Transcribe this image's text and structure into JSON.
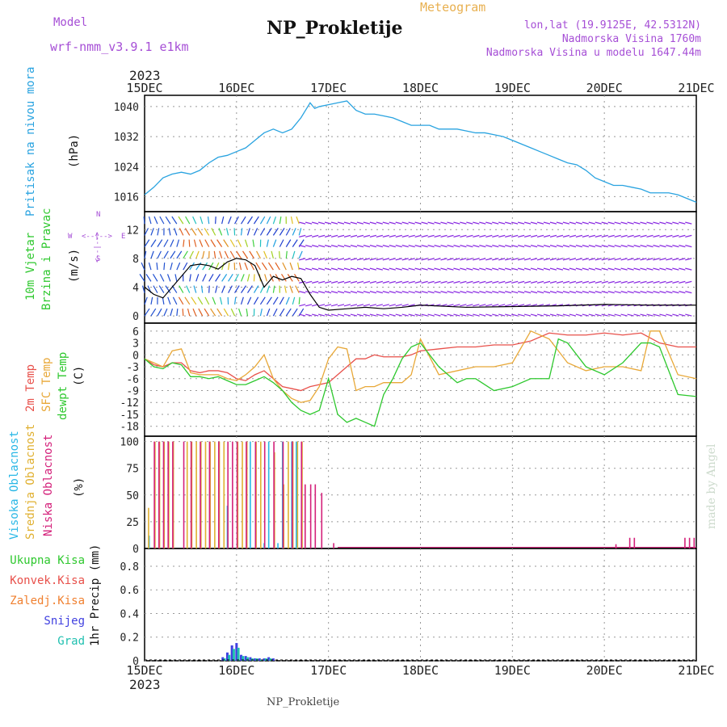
{
  "header": {
    "model_label": "Model",
    "model_name": "wrf-nmm_v3.9.1 e1km",
    "title": "NP_Prokletije",
    "meteogram_label": "Meteogram",
    "lonlat": "lon,lat (19.9125E, 42.5312N)",
    "altitude": "Nadmorska Visina 1760m",
    "model_altitude": "Nadmorska Visina u modelu 1647.44m"
  },
  "footer": {
    "station": "NP_Prokletije",
    "watermark": "made by Angel"
  },
  "time_axis": {
    "year": "2023",
    "labels": [
      "15DEC",
      "16DEC",
      "17DEC",
      "18DEC",
      "19DEC",
      "20DEC",
      "21DEC"
    ]
  },
  "panel_labels": {
    "pressure": {
      "name": "Pritisak na nivou mora",
      "unit": "(hPa)"
    },
    "wind": {
      "line1": "10m Vjetar",
      "line2": "Brzina i Pravac",
      "unit": "(m/s)",
      "compass_n": "N",
      "compass_s": "S",
      "compass_e": "E",
      "compass_w": "W",
      "compass_arrow_ns": "<--|-->",
      "compass_arrow_ew": "<--|-->"
    },
    "temp": {
      "t2m": "2m Temp",
      "sfc": "SFC Temp",
      "dew": "dewpt Temp",
      "unit": "(C)"
    },
    "cloud": {
      "high": "Visoka Oblacnost",
      "mid": "Srednja Oblacnost",
      "low": "Niska Oblacnost",
      "unit": "(%)"
    },
    "precip": {
      "total": "Ukupna Kisa",
      "conv": "Konvek.Kisa",
      "frz": "Zaledj.Kisa",
      "snow": "Snijeg",
      "grad": "Grad",
      "unit": "1hr Precip (mm)"
    }
  },
  "colors": {
    "pressure": "#29a3e0",
    "t2m": "#e8504a",
    "sfc": "#e8a838",
    "dew": "#2ec82e",
    "high_cloud": "#29b7e6",
    "mid_cloud": "#e0b030",
    "low_cloud": "#d4207a",
    "total_precip": "#2ec82e",
    "conv_precip": "#e8504a",
    "frz_precip": "#f08030",
    "snow": "#4040e0",
    "grad": "#20c0b0",
    "purple": "#a64fd6"
  },
  "chart_data": [
    {
      "type": "line",
      "panel": "pressure",
      "ylim": [
        1012,
        1043
      ],
      "yticks": [
        "1016",
        "1024",
        "1032",
        "1040"
      ],
      "xlim": [
        0,
        6
      ],
      "series": [
        {
          "x": [
            0,
            0.1,
            0.2,
            0.3,
            0.4,
            0.5,
            0.6,
            0.7,
            0.8,
            0.9,
            1.0,
            1.1,
            1.2,
            1.3,
            1.4,
            1.5,
            1.6,
            1.7,
            1.75,
            1.8,
            1.85,
            1.9,
            2.0,
            2.1,
            2.2,
            2.3,
            2.4,
            2.5,
            2.6,
            2.7,
            2.8,
            2.9,
            3.0,
            3.1,
            3.2,
            3.3,
            3.4,
            3.5,
            3.6,
            3.7,
            3.8,
            3.9,
            4.0,
            4.1,
            4.2,
            4.3,
            4.4,
            4.5,
            4.6,
            4.7,
            4.8,
            4.9,
            5.0,
            5.1,
            5.2,
            5.3,
            5.4,
            5.5,
            5.6,
            5.7,
            5.8,
            5.9,
            6.0
          ],
          "values": [
            1016.5,
            1018.5,
            1021,
            1022,
            1022.5,
            1022,
            1023,
            1025,
            1026.5,
            1027,
            1028,
            1029,
            1031,
            1033,
            1034,
            1033,
            1034,
            1037,
            1039,
            1041,
            1039.5,
            1040,
            1040.5,
            1041,
            1041.5,
            1039,
            1038,
            1038,
            1037.5,
            1037,
            1036,
            1035,
            1035,
            1035,
            1034,
            1034,
            1034,
            1033.5,
            1033,
            1033,
            1032.5,
            1032,
            1031,
            1030,
            1029,
            1028,
            1027,
            1026,
            1025,
            1024.5,
            1023,
            1021,
            1020,
            1019,
            1019,
            1018.5,
            1018,
            1017,
            1017,
            1017,
            1016.5,
            1015.5,
            1014.5
          ]
        }
      ]
    },
    {
      "type": "line",
      "panel": "wind",
      "ylim": [
        -1,
        14.5
      ],
      "yticks": [
        "0",
        "4",
        "8",
        "12"
      ],
      "xlim": [
        0,
        6
      ],
      "series": [
        {
          "name": "wind_speed",
          "x": [
            0,
            0.1,
            0.2,
            0.3,
            0.4,
            0.5,
            0.6,
            0.7,
            0.8,
            0.9,
            1.0,
            1.1,
            1.2,
            1.3,
            1.4,
            1.5,
            1.6,
            1.7,
            1.8,
            1.9,
            2.0,
            2.2,
            2.4,
            2.6,
            2.8,
            3.0,
            3.5,
            4.0,
            4.5,
            5.0,
            5.5,
            6.0
          ],
          "values": [
            4,
            3,
            2.5,
            4,
            5.5,
            7,
            7.2,
            7,
            6.5,
            7.5,
            8,
            7.8,
            7,
            4,
            5.5,
            5,
            5.5,
            5.2,
            3,
            1.2,
            0.8,
            1,
            1.2,
            1,
            1.2,
            1.5,
            1.2,
            1.3,
            1.4,
            1.6,
            1.5,
            1.5
          ]
        }
      ]
    },
    {
      "type": "line",
      "panel": "temp",
      "ylim": [
        -20.5,
        8
      ],
      "yticks": [
        "6",
        "3",
        "0",
        "-3",
        "-6",
        "-9",
        "-12",
        "-15",
        "-18"
      ],
      "xlim": [
        0,
        6
      ],
      "series": [
        {
          "name": "2m Temp",
          "x": [
            0,
            0.1,
            0.2,
            0.3,
            0.4,
            0.5,
            0.6,
            0.7,
            0.8,
            0.9,
            1.0,
            1.1,
            1.2,
            1.3,
            1.4,
            1.5,
            1.6,
            1.7,
            1.8,
            1.9,
            2.0,
            2.1,
            2.2,
            2.3,
            2.4,
            2.5,
            2.6,
            2.7,
            2.8,
            2.9,
            3.0,
            3.2,
            3.4,
            3.6,
            3.8,
            4.0,
            4.2,
            4.4,
            4.6,
            4.8,
            5.0,
            5.2,
            5.4,
            5.6,
            5.8,
            6.0
          ],
          "values": [
            -1,
            -2.5,
            -3,
            -2,
            -2,
            -4,
            -4.5,
            -4,
            -4,
            -4.5,
            -6,
            -6.5,
            -5,
            -4,
            -6,
            -8,
            -8.5,
            -9,
            -8,
            -7.5,
            -7,
            -5,
            -3,
            -1,
            -1,
            0,
            -0.5,
            -0.5,
            -0.5,
            0,
            1,
            1.5,
            2,
            2,
            2.5,
            2.5,
            3.5,
            5.5,
            5,
            5,
            5.5,
            5,
            5.5,
            3,
            2,
            2
          ]
        },
        {
          "name": "SFC Temp",
          "x": [
            0,
            0.1,
            0.2,
            0.3,
            0.4,
            0.5,
            0.6,
            0.7,
            0.8,
            0.9,
            1.0,
            1.1,
            1.2,
            1.3,
            1.4,
            1.5,
            1.6,
            1.7,
            1.8,
            1.9,
            2.0,
            2.1,
            2.2,
            2.3,
            2.4,
            2.5,
            2.6,
            2.7,
            2.8,
            2.9,
            3.0,
            3.2,
            3.4,
            3.6,
            3.8,
            4.0,
            4.2,
            4.4,
            4.6,
            4.8,
            5.0,
            5.2,
            5.4,
            5.5,
            5.6,
            5.8,
            6.0
          ],
          "values": [
            -1,
            -2,
            -3,
            1,
            1.5,
            -4.5,
            -5,
            -5,
            -5,
            -6,
            -6.5,
            -5,
            -3,
            0,
            -6,
            -9,
            -11,
            -12,
            -11.5,
            -8,
            -1,
            2,
            1.5,
            -9,
            -8,
            -8,
            -7,
            -7,
            -7,
            -5,
            4,
            -5,
            -4,
            -3,
            -3,
            -2,
            6,
            4,
            -2,
            -4,
            -3,
            -3,
            -4,
            6,
            6,
            -5,
            -6
          ]
        },
        {
          "name": "dewpt Temp",
          "x": [
            0,
            0.1,
            0.2,
            0.3,
            0.4,
            0.5,
            0.6,
            0.7,
            0.8,
            0.9,
            1.0,
            1.1,
            1.2,
            1.3,
            1.4,
            1.5,
            1.6,
            1.7,
            1.8,
            1.9,
            2.0,
            2.1,
            2.2,
            2.3,
            2.4,
            2.5,
            2.6,
            2.7,
            2.8,
            2.9,
            3.0,
            3.2,
            3.4,
            3.5,
            3.6,
            3.8,
            4.0,
            4.2,
            4.4,
            4.5,
            4.6,
            4.8,
            5.0,
            5.2,
            5.4,
            5.5,
            5.6,
            5.8,
            6.0
          ],
          "values": [
            -1,
            -3,
            -3.5,
            -2,
            -2.5,
            -5.5,
            -5.5,
            -6,
            -5.5,
            -6.5,
            -7.5,
            -7.5,
            -6.5,
            -5.5,
            -7,
            -9,
            -12,
            -14,
            -15,
            -14,
            -6,
            -15,
            -17,
            -16,
            -17,
            -18,
            -10,
            -6,
            -1,
            2,
            3,
            -3,
            -7,
            -6,
            -6,
            -9,
            -8,
            -6,
            -6,
            4,
            3,
            -3,
            -5,
            -2,
            3,
            3,
            2,
            -10,
            -10.5
          ]
        }
      ]
    },
    {
      "type": "bar",
      "panel": "cloud",
      "ylim": [
        0,
        105
      ],
      "yticks": [
        "0",
        "25",
        "50",
        "75",
        "100"
      ],
      "xlim": [
        0,
        6
      ],
      "series": [
        {
          "name": "Visoka Oblacnost",
          "x": [
            0.05,
            0.9,
            1.15,
            1.3,
            1.35,
            1.45,
            1.5,
            1.6,
            1.65
          ],
          "values": [
            12,
            40,
            100,
            5,
            100,
            5,
            100,
            100,
            100
          ]
        },
        {
          "name": "Srednja Oblacnost",
          "x": [
            0.03,
            0.1,
            0.15,
            0.2,
            0.25,
            0.3,
            0.45,
            0.5,
            0.55,
            0.6,
            0.65,
            0.7,
            0.75,
            0.8,
            0.85,
            1.0,
            1.05,
            1.1,
            1.2,
            1.25,
            1.4,
            1.5,
            1.55,
            1.6,
            1.65,
            1.7
          ],
          "values": [
            38,
            100,
            100,
            100,
            100,
            100,
            100,
            100,
            100,
            100,
            100,
            100,
            100,
            100,
            100,
            100,
            100,
            100,
            100,
            100,
            90,
            60,
            100,
            100,
            100,
            100
          ]
        },
        {
          "name": "Niska Oblacnost",
          "x": [
            0.08,
            0.13,
            0.18,
            0.23,
            0.28,
            0.4,
            0.48,
            0.58,
            0.68,
            0.78,
            0.88,
            0.93,
            0.98,
            1.08,
            1.18,
            1.28,
            1.38,
            1.48,
            1.58,
            1.68,
            1.72,
            1.78,
            1.83,
            1.9,
            2.03,
            5.1,
            5.25,
            5.3,
            5.85,
            5.9,
            5.95
          ],
          "values": [
            100,
            100,
            100,
            100,
            100,
            100,
            100,
            100,
            100,
            100,
            100,
            100,
            100,
            100,
            100,
            100,
            100,
            100,
            100,
            100,
            60,
            60,
            60,
            52,
            5,
            4,
            10,
            10,
            10,
            10,
            10
          ]
        }
      ]
    },
    {
      "type": "bar",
      "panel": "precip",
      "ylim": [
        0,
        0.95
      ],
      "yticks": [
        "0",
        "0.2",
        "0.4",
        "0.6",
        "0.8"
      ],
      "xlim": [
        0,
        6
      ],
      "series": [
        {
          "name": "Snijeg",
          "x": [
            0.85,
            0.9,
            0.95,
            1.0,
            1.05,
            1.1,
            1.15,
            1.2,
            1.25,
            1.3,
            1.35,
            1.4
          ],
          "values": [
            0.03,
            0.07,
            0.13,
            0.15,
            0.05,
            0.04,
            0.03,
            0.02,
            0.02,
            0.02,
            0.03,
            0.02
          ]
        },
        {
          "name": "Grad",
          "x": [
            0.87,
            0.92,
            0.97,
            1.02,
            1.07,
            1.12,
            1.17,
            1.22,
            1.27,
            1.32,
            1.37
          ],
          "values": [
            0.02,
            0.05,
            0.1,
            0.11,
            0.04,
            0.03,
            0.02,
            0.02,
            0.01,
            0.02,
            0.02
          ]
        }
      ]
    }
  ]
}
